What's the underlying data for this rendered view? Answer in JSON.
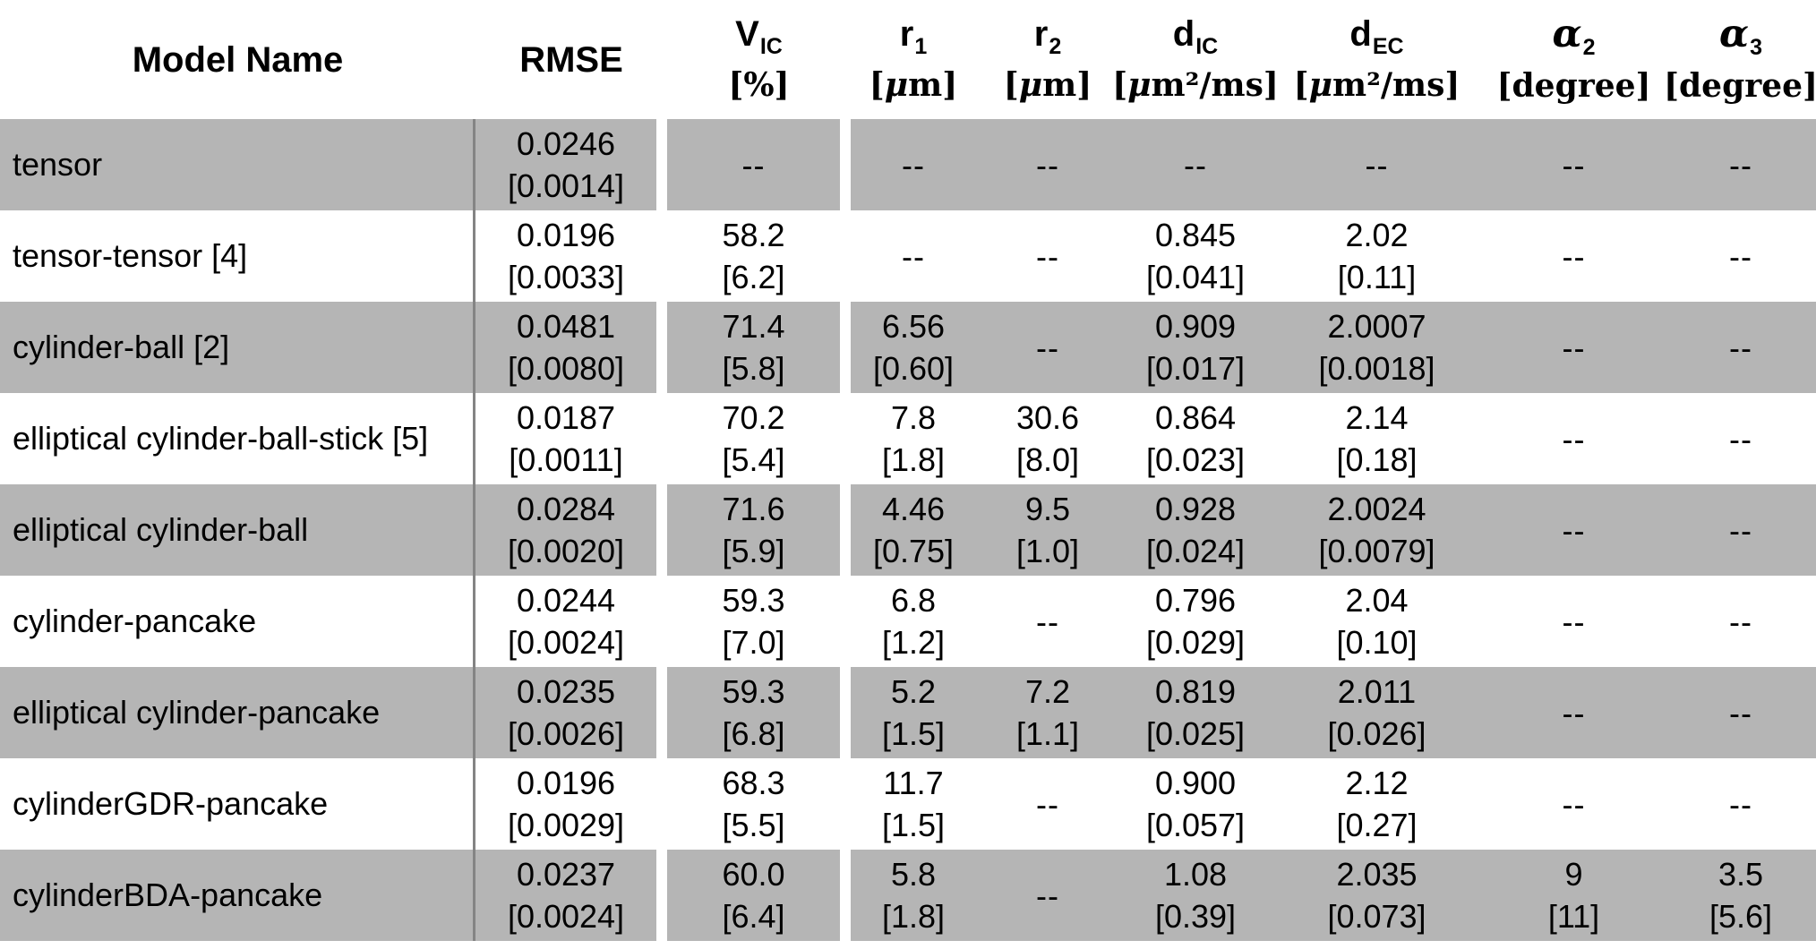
{
  "table": {
    "columns": [
      {
        "key": "model-name",
        "label": "Model Name",
        "sub": "",
        "unit": "",
        "greek": false
      },
      {
        "key": "rmse",
        "label": "RMSE",
        "sub": "",
        "unit": "",
        "greek": false
      },
      {
        "key": "vic",
        "label": "V",
        "sub": "IC",
        "unit": "[%]",
        "greek": false
      },
      {
        "key": "r1",
        "label": "r",
        "sub": "1",
        "unit": "[μm]",
        "greek": false
      },
      {
        "key": "r2",
        "label": "r",
        "sub": "2",
        "unit": "[μm]",
        "greek": false
      },
      {
        "key": "dic",
        "label": "d",
        "sub": "IC",
        "unit": "[μm²/ms]",
        "greek": false
      },
      {
        "key": "dec",
        "label": "d",
        "sub": "EC",
        "unit": "[μm²/ms]",
        "greek": false
      },
      {
        "key": "alpha2",
        "label": "α",
        "sub": "2",
        "unit": "[degree]",
        "greek": true
      },
      {
        "key": "alpha3",
        "label": "α",
        "sub": "3",
        "unit": "[degree]",
        "greek": true
      }
    ],
    "placeholder_dash": "--",
    "rows": [
      {
        "shaded": true,
        "model": "tensor",
        "cells": [
          [
            "0.0246",
            "[0.0014]"
          ],
          "--",
          "--",
          "--",
          "--",
          "--",
          "--",
          "--"
        ]
      },
      {
        "shaded": false,
        "model": "tensor-tensor [4]",
        "cells": [
          [
            "0.0196",
            "[0.0033]"
          ],
          [
            "58.2",
            "[6.2]"
          ],
          "--",
          "--",
          [
            "0.845",
            "[0.041]"
          ],
          [
            "2.02",
            "[0.11]"
          ],
          "--",
          "--"
        ]
      },
      {
        "shaded": true,
        "model": "cylinder-ball [2]",
        "cells": [
          [
            "0.0481",
            "[0.0080]"
          ],
          [
            "71.4",
            "[5.8]"
          ],
          [
            "6.56",
            "[0.60]"
          ],
          "--",
          [
            "0.909",
            "[0.017]"
          ],
          [
            "2.0007",
            "[0.0018]"
          ],
          "--",
          "--"
        ]
      },
      {
        "shaded": false,
        "model": "elliptical cylinder-ball-stick [5]",
        "cells": [
          [
            "0.0187",
            "[0.0011]"
          ],
          [
            "70.2",
            "[5.4]"
          ],
          [
            "7.8",
            "[1.8]"
          ],
          [
            "30.6",
            "[8.0]"
          ],
          [
            "0.864",
            "[0.023]"
          ],
          [
            "2.14",
            "[0.18]"
          ],
          "--",
          "--"
        ]
      },
      {
        "shaded": true,
        "model": "elliptical cylinder-ball",
        "cells": [
          [
            "0.0284",
            "[0.0020]"
          ],
          [
            "71.6",
            "[5.9]"
          ],
          [
            "4.46",
            "[0.75]"
          ],
          [
            "9.5",
            "[1.0]"
          ],
          [
            "0.928",
            "[0.024]"
          ],
          [
            "2.0024",
            "[0.0079]"
          ],
          "--",
          "--"
        ]
      },
      {
        "shaded": false,
        "model": "cylinder-pancake",
        "cells": [
          [
            "0.0244",
            "[0.0024]"
          ],
          [
            "59.3",
            "[7.0]"
          ],
          [
            "6.8",
            "[1.2]"
          ],
          "--",
          [
            "0.796",
            "[0.029]"
          ],
          [
            "2.04",
            "[0.10]"
          ],
          "--",
          "--"
        ]
      },
      {
        "shaded": true,
        "model": "elliptical cylinder-pancake",
        "cells": [
          [
            "0.0235",
            "[0.0026]"
          ],
          [
            "59.3",
            "[6.8]"
          ],
          [
            "5.2",
            "[1.5]"
          ],
          [
            "7.2",
            "[1.1]"
          ],
          [
            "0.819",
            "[0.025]"
          ],
          [
            "2.011",
            "[0.026]"
          ],
          "--",
          "--"
        ]
      },
      {
        "shaded": false,
        "model": "cylinderGDR-pancake",
        "cells": [
          [
            "0.0196",
            "[0.0029]"
          ],
          [
            "68.3",
            "[5.5]"
          ],
          [
            "11.7",
            "[1.5]"
          ],
          "--",
          [
            "0.900",
            "[0.057]"
          ],
          [
            "2.12",
            "[0.27]"
          ],
          "--",
          "--"
        ]
      },
      {
        "shaded": true,
        "model": "cylinderBDA-pancake",
        "cells": [
          [
            "0.0237",
            "[0.0024]"
          ],
          [
            "60.0",
            "[6.4]"
          ],
          [
            "5.8",
            "[1.8]"
          ],
          "--",
          [
            "1.08",
            "[0.39]"
          ],
          [
            "2.035",
            "[0.073]"
          ],
          [
            "9",
            "[11]"
          ],
          [
            "3.5",
            "[5.6]"
          ]
        ]
      }
    ],
    "colors": {
      "shaded_row": "#b5b5b5",
      "plain_row": "#ffffff",
      "divider_line": "#848484",
      "text": "#000000"
    }
  }
}
